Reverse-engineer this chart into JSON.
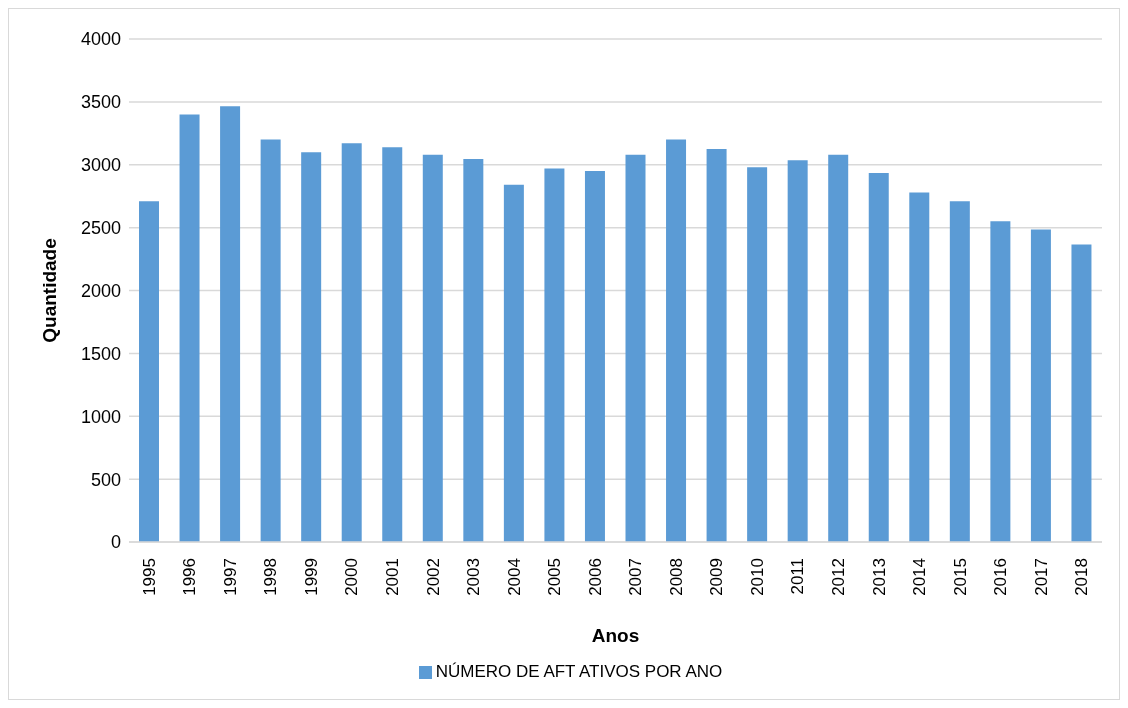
{
  "chart_data": {
    "type": "bar",
    "xlabel": "Anos",
    "ylabel": "Quantidade",
    "categories": [
      "1995",
      "1996",
      "1997",
      "1998",
      "1999",
      "2000",
      "2001",
      "2002",
      "2003",
      "2004",
      "2005",
      "2006",
      "2007",
      "2008",
      "2009",
      "2010",
      "2011",
      "2012",
      "2013",
      "2014",
      "2015",
      "2016",
      "2017",
      "2018"
    ],
    "series": [
      {
        "name": "NÚMERO DE AFT ATIVOS POR ANO",
        "color": "#5b9bd5",
        "values": [
          2710,
          3400,
          3465,
          3200,
          3100,
          3170,
          3140,
          3080,
          3045,
          2840,
          2970,
          2950,
          3080,
          3200,
          3125,
          2980,
          3035,
          3080,
          2935,
          2780,
          2710,
          2550,
          2485,
          2365
        ]
      }
    ],
    "ylim": [
      0,
      4000
    ],
    "yticks": [
      0,
      500,
      1000,
      1500,
      2000,
      2500,
      3000,
      3500,
      4000
    ],
    "grid": "y",
    "legend": "bottom"
  }
}
